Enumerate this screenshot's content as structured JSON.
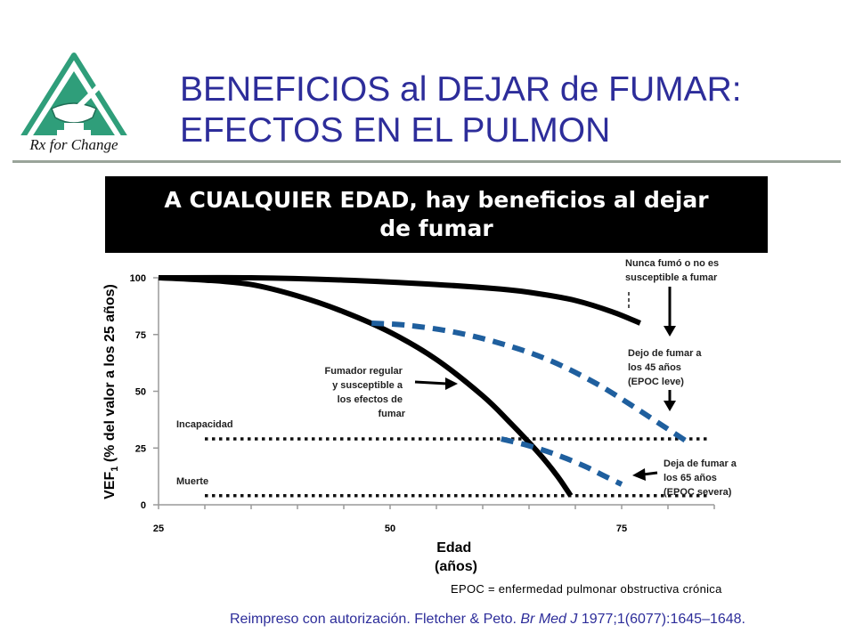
{
  "title": {
    "line1": "BENEFICIOS al DEJAR de FUMAR:",
    "line2": "EFECTOS EN EL PULMON"
  },
  "logo": {
    "text": "Rx for Change"
  },
  "banner": {
    "line1": "A CUALQUIER EDAD, hay beneficios al dejar",
    "line2": "de fumar"
  },
  "chart_data": {
    "type": "line",
    "xlabel": {
      "line1": "Edad",
      "line2": "(años)"
    },
    "ylabel": {
      "main": "VEF",
      "sub": "1",
      "rest": " (% del valor a los 25 años)"
    },
    "xlim": [
      25,
      85
    ],
    "ylim": [
      0,
      100
    ],
    "x_ticks": [
      25,
      50,
      75
    ],
    "y_ticks": [
      0,
      25,
      50,
      75,
      100
    ],
    "reference_lines": [
      {
        "label": "Incapacidad",
        "y": 29
      },
      {
        "label": "Muerte",
        "y": 4
      }
    ],
    "series": [
      {
        "style": "solid",
        "points": [
          [
            25,
            100
          ],
          [
            35,
            100
          ],
          [
            45,
            99
          ],
          [
            55,
            97
          ],
          [
            62,
            95
          ],
          [
            66,
            93
          ],
          [
            70,
            90
          ],
          [
            74,
            85
          ],
          [
            77,
            80
          ]
        ]
      },
      {
        "style": "solid",
        "points": [
          [
            25,
            100
          ],
          [
            30,
            99
          ],
          [
            35,
            97
          ],
          [
            40,
            92
          ],
          [
            45,
            85
          ],
          [
            50,
            76
          ],
          [
            55,
            64
          ],
          [
            60,
            48
          ],
          [
            63,
            36
          ],
          [
            66,
            23
          ],
          [
            68,
            13
          ],
          [
            69.5,
            4
          ]
        ]
      },
      {
        "style": "dashed",
        "points": [
          [
            48,
            80
          ],
          [
            52,
            79
          ],
          [
            57,
            76
          ],
          [
            62,
            71
          ],
          [
            67,
            64
          ],
          [
            72,
            54
          ],
          [
            76,
            44
          ],
          [
            79,
            36
          ],
          [
            82,
            28
          ]
        ]
      },
      {
        "style": "dashed",
        "points": [
          [
            62,
            29
          ],
          [
            65,
            26
          ],
          [
            68,
            22
          ],
          [
            71,
            17
          ],
          [
            73,
            13
          ],
          [
            75,
            9
          ]
        ]
      }
    ],
    "annotations": [
      {
        "lines": [
          "Nunca fumó o no es",
          "susceptible a fumar"
        ]
      },
      {
        "lines": [
          "Dejo de fumar a",
          "los 45 años",
          "(EPOC leve)"
        ]
      },
      {
        "lines": [
          "Fumador regular",
          "y susceptible a",
          "los efectos de",
          "fumar"
        ]
      },
      {
        "lines": [
          "Deja de fumar a",
          "los 65 años",
          "(EPOC severa)"
        ]
      }
    ]
  },
  "footnote": "EPOC = enfermedad pulmonar obstructiva crónica",
  "citation": {
    "prefix": "Reimpreso con autorización. Fletcher & Peto. ",
    "journal": "Br Med J",
    "suffix": " 1977;1(6077):1645–1648."
  }
}
